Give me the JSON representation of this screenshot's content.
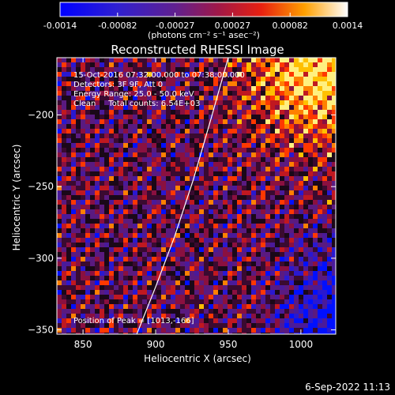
{
  "chart_data": {
    "type": "heatmap",
    "title": "Reconstructed RHESSI Image",
    "xlabel": "Heliocentric X (arcsec)",
    "ylabel": "Heliocentric Y (arcsec)",
    "xlim": [
      832,
      1024
    ],
    "ylim": [
      -353,
      -160
    ],
    "xticks": [
      850,
      900,
      950,
      1000
    ],
    "yticks": [
      -200,
      -250,
      -300,
      -350
    ],
    "colorbar": {
      "range": [
        -0.0014,
        0.0014
      ],
      "ticks": [
        "-0.0014",
        "-0.00082",
        "-0.00027",
        "0.00027",
        "0.00082",
        "0.0014"
      ],
      "unit_label": "(photons cm⁻² s⁻¹ asec⁻²)"
    },
    "annotations": [
      "15-Oct-2016 07:32:00.000 to 07:38:00.000",
      "Detectors: 3F 9F, Att 0",
      "Energy Range: 25.0 - 50.0 keV",
      "Clean     Total counts: 6.54E+03"
    ],
    "peak_label": "Position of Peak = [1013,-166]",
    "peak": [
      1013,
      -166
    ],
    "limb_curve": {
      "x": [
        887,
        900,
        913,
        926,
        938,
        950
      ],
      "y": [
        -353,
        -320,
        -285,
        -245,
        -203,
        -160
      ]
    }
  },
  "footer": {
    "timestamp": "6-Sep-2022 11:13"
  }
}
